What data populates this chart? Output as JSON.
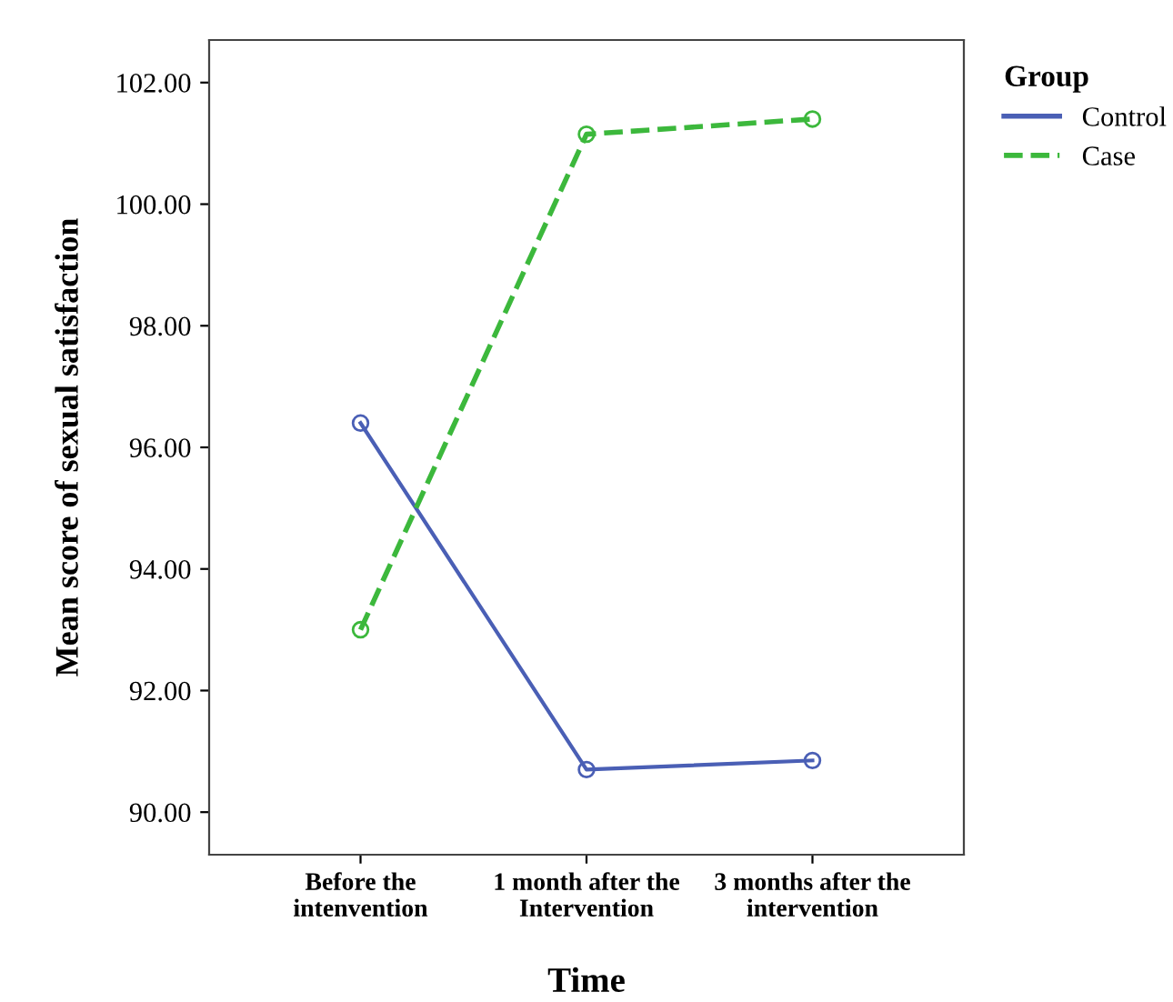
{
  "chart_data": {
    "type": "line",
    "xlabel": "Time",
    "ylabel": "Mean score of sexual satisfaction",
    "legend_title": "Group",
    "categories": [
      "Before the\nintenvention",
      "1 month after the\nIntervention",
      "3 months after the\nintervention"
    ],
    "series": [
      {
        "name": "Control",
        "color": "#4a5fb5",
        "values": [
          96.4,
          90.7,
          90.85
        ],
        "line_style": "solid"
      },
      {
        "name": "Case",
        "color": "#3cb83c",
        "values": [
          93.0,
          101.15,
          101.4
        ],
        "line_style": "dashed"
      }
    ],
    "ylim": [
      89.3,
      102.7
    ],
    "yticks": [
      {
        "value": 90,
        "label": "90.00"
      },
      {
        "value": 92,
        "label": "92.00"
      },
      {
        "value": 94,
        "label": "94.00"
      },
      {
        "value": 96,
        "label": "96.00"
      },
      {
        "value": 98,
        "label": "98.00"
      },
      {
        "value": 100,
        "label": "100.00"
      },
      {
        "value": 102,
        "label": "102.00"
      }
    ],
    "grid": false,
    "legend": "top right",
    "marker": "circle"
  }
}
